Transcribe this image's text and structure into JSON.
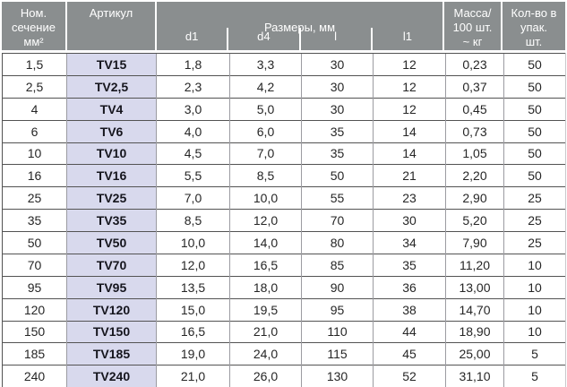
{
  "header": {
    "nominal_section": "Ном.\nсечение\nмм²",
    "article": "Артикул",
    "dimensions_title": "Размеры, мм",
    "sub": {
      "d1": "d1",
      "d4": "d4",
      "l": "l",
      "l1": "l1"
    },
    "mass": "Масса/\n100 шт.\n~ кг",
    "pack_qty": "Кол-во в\nупак.\nшт."
  },
  "colors": {
    "header_bg": "#8a8e8f",
    "header_text": "#ffffff",
    "article_bg": "#d8d9ed",
    "row_border": "#535353",
    "column_border": "#9b9ba1"
  },
  "chart_data": {
    "type": "table",
    "title": "",
    "columns": [
      "Ном. сечение мм²",
      "Артикул",
      "d1, мм",
      "d4, мм",
      "l, мм",
      "l1, мм",
      "Масса/100 шт. ~ кг",
      "Кол-во в упак. шт."
    ],
    "rows": [
      [
        "1,5",
        "TV15",
        "1,8",
        "3,3",
        "30",
        "12",
        "0,23",
        "50"
      ],
      [
        "2,5",
        "TV2,5",
        "2,3",
        "4,2",
        "30",
        "12",
        "0,37",
        "50"
      ],
      [
        "4",
        "TV4",
        "3,0",
        "5,0",
        "30",
        "12",
        "0,45",
        "50"
      ],
      [
        "6",
        "TV6",
        "4,0",
        "6,0",
        "35",
        "14",
        "0,73",
        "50"
      ],
      [
        "10",
        "TV10",
        "4,5",
        "7,0",
        "35",
        "14",
        "1,05",
        "50"
      ],
      [
        "16",
        "TV16",
        "5,5",
        "8,5",
        "50",
        "21",
        "2,20",
        "50"
      ],
      [
        "25",
        "TV25",
        "7,0",
        "10,0",
        "55",
        "23",
        "2,90",
        "25"
      ],
      [
        "35",
        "TV35",
        "8,5",
        "12,0",
        "70",
        "30",
        "5,20",
        "25"
      ],
      [
        "50",
        "TV50",
        "10,0",
        "14,0",
        "80",
        "34",
        "7,90",
        "25"
      ],
      [
        "70",
        "TV70",
        "12,0",
        "16,5",
        "85",
        "35",
        "11,20",
        "10"
      ],
      [
        "95",
        "TV95",
        "13,5",
        "18,0",
        "90",
        "36",
        "13,00",
        "10"
      ],
      [
        "120",
        "TV120",
        "15,0",
        "19,5",
        "95",
        "38",
        "14,70",
        "10"
      ],
      [
        "150",
        "TV150",
        "16,5",
        "21,0",
        "110",
        "44",
        "18,90",
        "10"
      ],
      [
        "185",
        "TV185",
        "19,0",
        "24,0",
        "115",
        "45",
        "25,00",
        "5"
      ],
      [
        "240",
        "TV240",
        "21,0",
        "26,0",
        "130",
        "52",
        "31,10",
        "5"
      ]
    ]
  }
}
